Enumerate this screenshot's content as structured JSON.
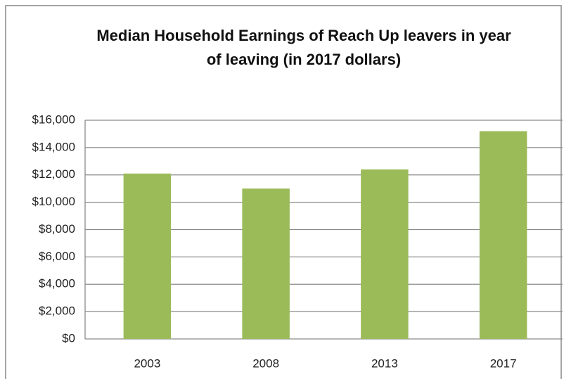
{
  "chart_data": {
    "type": "bar",
    "title": [
      "Median Household Earnings of Reach Up leavers in year",
      "of leaving (in 2017 dollars)"
    ],
    "categories": [
      "2003",
      "2008",
      "2013",
      "2017"
    ],
    "values": [
      12100,
      11000,
      12400,
      15200
    ],
    "color": "#9bbb59",
    "ylim": [
      0,
      16000
    ],
    "yticks": [
      {
        "value": 0,
        "label": "$0"
      },
      {
        "value": 2000,
        "label": "$2,000"
      },
      {
        "value": 4000,
        "label": "$4,000"
      },
      {
        "value": 6000,
        "label": "$6,000"
      },
      {
        "value": 8000,
        "label": "$8,000"
      },
      {
        "value": 10000,
        "label": "$10,000"
      },
      {
        "value": 12000,
        "label": "$12,000"
      },
      {
        "value": 14000,
        "label": "$14,000"
      },
      {
        "value": 16000,
        "label": "$16,000"
      }
    ],
    "grid": true
  }
}
